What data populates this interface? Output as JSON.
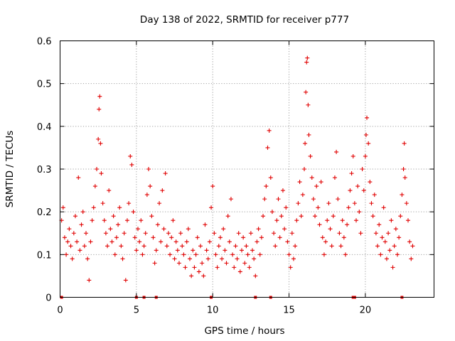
{
  "colors": {
    "series": "#e00000",
    "grid": "#a0a0a0",
    "frame": "#000000"
  },
  "chart_data": {
    "type": "scatter",
    "title": "Day 138 of 2022, SRMTID for receiver p777",
    "xlabel": "GPS time / hours",
    "ylabel": "SRMTID / TECUs",
    "xlim": [
      0,
      24.5
    ],
    "ylim": [
      0,
      0.6
    ],
    "xticks": [
      0,
      5,
      10,
      15,
      20
    ],
    "xtick_labels": [
      "0",
      "5",
      "10",
      "15",
      "20"
    ],
    "yticks": [
      0,
      0.1,
      0.2,
      0.3,
      0.4,
      0.5,
      0.6
    ],
    "ytick_labels": [
      "0",
      "0.1",
      "0.2",
      "0.3",
      "0.4",
      "0.5",
      "0.6"
    ],
    "grid": true,
    "marker": "plus",
    "series": [
      {
        "name": "SRMTID",
        "points": [
          [
            0.1,
            0.18
          ],
          [
            0.2,
            0.21
          ],
          [
            0.3,
            0.14
          ],
          [
            0.4,
            0.1
          ],
          [
            0.5,
            0.13
          ],
          [
            0.6,
            0.16
          ],
          [
            0.7,
            0.12
          ],
          [
            0.8,
            0.09
          ],
          [
            0.9,
            0.15
          ],
          [
            1.0,
            0.19
          ],
          [
            1.1,
            0.13
          ],
          [
            1.2,
            0.28
          ],
          [
            1.3,
            0.11
          ],
          [
            1.4,
            0.17
          ],
          [
            1.5,
            0.2
          ],
          [
            1.6,
            0.12
          ],
          [
            1.7,
            0.15
          ],
          [
            1.8,
            0.09
          ],
          [
            1.9,
            0.04
          ],
          [
            2.0,
            0.13
          ],
          [
            2.1,
            0.18
          ],
          [
            2.2,
            0.21
          ],
          [
            2.3,
            0.26
          ],
          [
            2.4,
            0.3
          ],
          [
            2.5,
            0.37
          ],
          [
            2.55,
            0.44
          ],
          [
            2.6,
            0.47
          ],
          [
            2.65,
            0.36
          ],
          [
            2.7,
            0.29
          ],
          [
            2.8,
            0.22
          ],
          [
            2.9,
            0.18
          ],
          [
            3.0,
            0.15
          ],
          [
            3.1,
            0.12
          ],
          [
            3.2,
            0.25
          ],
          [
            3.3,
            0.16
          ],
          [
            3.4,
            0.13
          ],
          [
            3.5,
            0.19
          ],
          [
            3.6,
            0.1
          ],
          [
            3.7,
            0.14
          ],
          [
            3.8,
            0.17
          ],
          [
            3.9,
            0.21
          ],
          [
            4.0,
            0.12
          ],
          [
            4.1,
            0.09
          ],
          [
            4.2,
            0.15
          ],
          [
            4.3,
            0.04
          ],
          [
            4.4,
            0.18
          ],
          [
            4.5,
            0.22
          ],
          [
            4.6,
            0.33
          ],
          [
            4.7,
            0.31
          ],
          [
            4.8,
            0.2
          ],
          [
            4.9,
            0.14
          ],
          [
            5.0,
            0.11
          ],
          [
            5.1,
            0.16
          ],
          [
            5.2,
            0.13
          ],
          [
            5.3,
            0.18
          ],
          [
            5.4,
            0.1
          ],
          [
            5.5,
            0.12
          ],
          [
            5.6,
            0.15
          ],
          [
            5.7,
            0.24
          ],
          [
            5.8,
            0.3
          ],
          [
            5.9,
            0.26
          ],
          [
            6.0,
            0.19
          ],
          [
            6.1,
            0.14
          ],
          [
            6.2,
            0.08
          ],
          [
            6.3,
            0.11
          ],
          [
            6.4,
            0.17
          ],
          [
            6.5,
            0.22
          ],
          [
            6.6,
            0.13
          ],
          [
            6.7,
            0.25
          ],
          [
            6.8,
            0.16
          ],
          [
            6.9,
            0.29
          ],
          [
            7.0,
            0.12
          ],
          [
            7.1,
            0.15
          ],
          [
            7.2,
            0.1
          ],
          [
            7.3,
            0.14
          ],
          [
            7.4,
            0.18
          ],
          [
            7.5,
            0.09
          ],
          [
            7.6,
            0.13
          ],
          [
            7.7,
            0.11
          ],
          [
            7.8,
            0.08
          ],
          [
            7.9,
            0.15
          ],
          [
            8.0,
            0.12
          ],
          [
            8.1,
            0.1
          ],
          [
            8.2,
            0.07
          ],
          [
            8.3,
            0.13
          ],
          [
            8.4,
            0.16
          ],
          [
            8.5,
            0.09
          ],
          [
            8.6,
            0.05
          ],
          [
            8.7,
            0.11
          ],
          [
            8.8,
            0.07
          ],
          [
            8.9,
            0.1
          ],
          [
            9.0,
            0.14
          ],
          [
            9.1,
            0.06
          ],
          [
            9.2,
            0.12
          ],
          [
            9.3,
            0.08
          ],
          [
            9.4,
            0.05
          ],
          [
            9.5,
            0.17
          ],
          [
            9.6,
            0.11
          ],
          [
            9.7,
            0.09
          ],
          [
            9.8,
            0.13
          ],
          [
            9.9,
            0.21
          ],
          [
            10.0,
            0.26
          ],
          [
            10.1,
            0.15
          ],
          [
            10.2,
            0.1
          ],
          [
            10.3,
            0.07
          ],
          [
            10.4,
            0.12
          ],
          [
            10.5,
            0.14
          ],
          [
            10.6,
            0.09
          ],
          [
            10.7,
            0.16
          ],
          [
            10.8,
            0.11
          ],
          [
            10.9,
            0.08
          ],
          [
            11.0,
            0.19
          ],
          [
            11.1,
            0.13
          ],
          [
            11.2,
            0.23
          ],
          [
            11.3,
            0.1
          ],
          [
            11.4,
            0.07
          ],
          [
            11.5,
            0.12
          ],
          [
            11.6,
            0.09
          ],
          [
            11.7,
            0.15
          ],
          [
            11.8,
            0.06
          ],
          [
            11.9,
            0.11
          ],
          [
            12.0,
            0.14
          ],
          [
            12.1,
            0.08
          ],
          [
            12.2,
            0.12
          ],
          [
            12.3,
            0.1
          ],
          [
            12.4,
            0.07
          ],
          [
            12.5,
            0.15
          ],
          [
            12.6,
            0.11
          ],
          [
            12.7,
            0.09
          ],
          [
            12.8,
            0.05
          ],
          [
            12.9,
            0.13
          ],
          [
            13.0,
            0.16
          ],
          [
            13.1,
            0.1
          ],
          [
            13.2,
            0.14
          ],
          [
            13.3,
            0.19
          ],
          [
            13.4,
            0.23
          ],
          [
            13.5,
            0.26
          ],
          [
            13.6,
            0.35
          ],
          [
            13.7,
            0.39
          ],
          [
            13.8,
            0.28
          ],
          [
            13.9,
            0.2
          ],
          [
            14.0,
            0.15
          ],
          [
            14.1,
            0.12
          ],
          [
            14.2,
            0.18
          ],
          [
            14.3,
            0.23
          ],
          [
            14.4,
            0.14
          ],
          [
            14.5,
            0.19
          ],
          [
            14.6,
            0.25
          ],
          [
            14.7,
            0.16
          ],
          [
            14.8,
            0.21
          ],
          [
            14.9,
            0.13
          ],
          [
            15.0,
            0.1
          ],
          [
            15.1,
            0.07
          ],
          [
            15.2,
            0.15
          ],
          [
            15.3,
            0.09
          ],
          [
            15.4,
            0.12
          ],
          [
            15.5,
            0.18
          ],
          [
            15.6,
            0.22
          ],
          [
            15.7,
            0.27
          ],
          [
            15.8,
            0.19
          ],
          [
            15.9,
            0.24
          ],
          [
            16.0,
            0.3
          ],
          [
            16.05,
            0.36
          ],
          [
            16.1,
            0.48
          ],
          [
            16.15,
            0.55
          ],
          [
            16.2,
            0.56
          ],
          [
            16.25,
            0.45
          ],
          [
            16.3,
            0.38
          ],
          [
            16.4,
            0.33
          ],
          [
            16.5,
            0.28
          ],
          [
            16.6,
            0.23
          ],
          [
            16.7,
            0.19
          ],
          [
            16.8,
            0.26
          ],
          [
            16.9,
            0.21
          ],
          [
            17.0,
            0.17
          ],
          [
            17.1,
            0.27
          ],
          [
            17.2,
            0.14
          ],
          [
            17.3,
            0.1
          ],
          [
            17.4,
            0.13
          ],
          [
            17.5,
            0.18
          ],
          [
            17.6,
            0.22
          ],
          [
            17.7,
            0.16
          ],
          [
            17.8,
            0.12
          ],
          [
            17.9,
            0.19
          ],
          [
            18.0,
            0.28
          ],
          [
            18.1,
            0.34
          ],
          [
            18.2,
            0.23
          ],
          [
            18.3,
            0.15
          ],
          [
            18.4,
            0.12
          ],
          [
            18.5,
            0.18
          ],
          [
            18.6,
            0.14
          ],
          [
            18.7,
            0.1
          ],
          [
            18.8,
            0.17
          ],
          [
            18.9,
            0.21
          ],
          [
            19.0,
            0.25
          ],
          [
            19.1,
            0.29
          ],
          [
            19.2,
            0.33
          ],
          [
            19.3,
            0.22
          ],
          [
            19.4,
            0.18
          ],
          [
            19.5,
            0.26
          ],
          [
            19.6,
            0.2
          ],
          [
            19.7,
            0.15
          ],
          [
            19.8,
            0.3
          ],
          [
            19.9,
            0.25
          ],
          [
            20.0,
            0.33
          ],
          [
            20.05,
            0.38
          ],
          [
            20.1,
            0.42
          ],
          [
            20.2,
            0.36
          ],
          [
            20.3,
            0.27
          ],
          [
            20.4,
            0.22
          ],
          [
            20.5,
            0.19
          ],
          [
            20.6,
            0.24
          ],
          [
            20.7,
            0.15
          ],
          [
            20.8,
            0.12
          ],
          [
            20.9,
            0.17
          ],
          [
            21.0,
            0.1
          ],
          [
            21.1,
            0.14
          ],
          [
            21.2,
            0.21
          ],
          [
            21.3,
            0.13
          ],
          [
            21.4,
            0.09
          ],
          [
            21.5,
            0.15
          ],
          [
            21.6,
            0.11
          ],
          [
            21.7,
            0.18
          ],
          [
            21.8,
            0.07
          ],
          [
            21.9,
            0.12
          ],
          [
            22.0,
            0.16
          ],
          [
            22.1,
            0.1
          ],
          [
            22.2,
            0.14
          ],
          [
            22.3,
            0.19
          ],
          [
            22.4,
            0.24
          ],
          [
            22.5,
            0.3
          ],
          [
            22.55,
            0.36
          ],
          [
            22.6,
            0.28
          ],
          [
            22.7,
            0.22
          ],
          [
            22.8,
            0.18
          ],
          [
            22.9,
            0.13
          ],
          [
            23.0,
            0.09
          ],
          [
            23.1,
            0.12
          ]
        ]
      }
    ],
    "zero_markers": [
      0.1,
      5.0,
      5.5,
      6.3,
      9.9,
      12.8,
      13.8,
      19.2,
      19.3,
      22.4
    ]
  }
}
